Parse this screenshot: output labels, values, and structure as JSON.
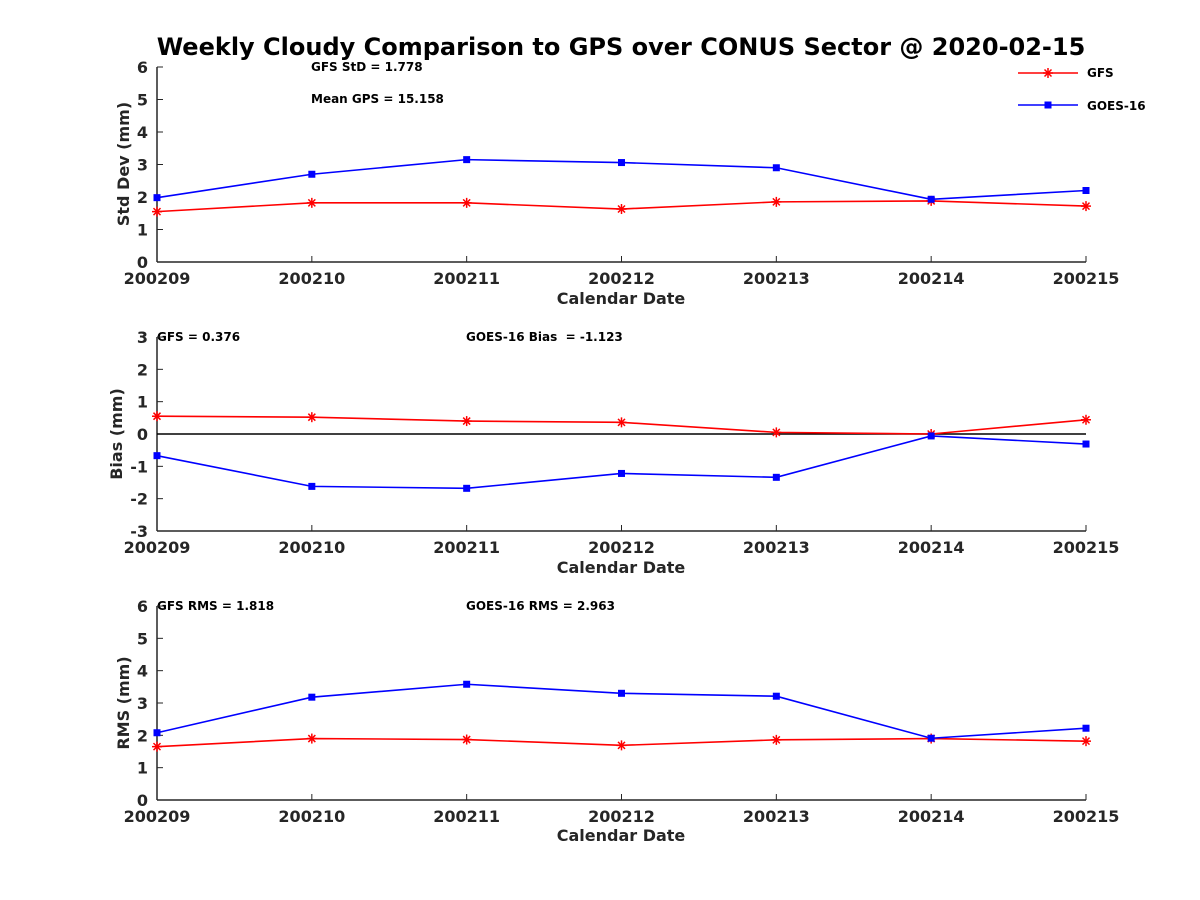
{
  "figure": {
    "title": "Weekly Cloudy Comparison to GPS over CONUS Sector @ 2020-02-15"
  },
  "legend": {
    "placement": "top-right",
    "items": [
      {
        "label": "GFS",
        "color": "#ff0000",
        "marker": "asterisk"
      },
      {
        "label": "GOES-16",
        "color": "#0000ff",
        "marker": "square"
      }
    ]
  },
  "chart_data": [
    {
      "type": "line",
      "xlabel": "Calendar Date",
      "ylabel": "Std Dev (mm)",
      "categories": [
        "200209",
        "200210",
        "200211",
        "200212",
        "200213",
        "200214",
        "200215"
      ],
      "ylim": [
        0,
        6
      ],
      "yticks": [
        "0",
        "1",
        "2",
        "3",
        "4",
        "5",
        "6"
      ],
      "annotations": [
        "GFS StD = 1.778",
        "Mean GPS = 15.158"
      ],
      "series": [
        {
          "name": "GFS",
          "color": "#ff0000",
          "marker": "asterisk",
          "values": [
            1.55,
            1.82,
            1.82,
            1.63,
            1.85,
            1.88,
            1.72
          ]
        },
        {
          "name": "GOES-16",
          "color": "#0000ff",
          "marker": "square",
          "values": [
            1.98,
            2.7,
            3.15,
            3.06,
            2.9,
            1.93,
            2.2
          ]
        }
      ]
    },
    {
      "type": "line",
      "xlabel": "Calendar Date",
      "ylabel": "Bias (mm)",
      "categories": [
        "200209",
        "200210",
        "200211",
        "200212",
        "200213",
        "200214",
        "200215"
      ],
      "ylim": [
        -3,
        3
      ],
      "yticks": [
        "-3",
        "-2",
        "-1",
        "0",
        "1",
        "2",
        "3"
      ],
      "zero_line": true,
      "annotations": [
        "GFS = 0.376",
        "GOES-16 Bias  = -1.123"
      ],
      "series": [
        {
          "name": "GFS",
          "color": "#ff0000",
          "marker": "asterisk",
          "values": [
            0.55,
            0.52,
            0.4,
            0.36,
            0.05,
            0.0,
            0.44
          ]
        },
        {
          "name": "GOES-16",
          "color": "#0000ff",
          "marker": "square",
          "values": [
            -0.67,
            -1.62,
            -1.68,
            -1.22,
            -1.34,
            -0.06,
            -0.31
          ]
        }
      ]
    },
    {
      "type": "line",
      "xlabel": "Calendar Date",
      "ylabel": "RMS (mm)",
      "categories": [
        "200209",
        "200210",
        "200211",
        "200212",
        "200213",
        "200214",
        "200215"
      ],
      "ylim": [
        0,
        6
      ],
      "yticks": [
        "0",
        "1",
        "2",
        "3",
        "4",
        "5",
        "6"
      ],
      "annotations": [
        "GFS RMS = 1.818",
        "GOES-16 RMS = 2.963"
      ],
      "series": [
        {
          "name": "GFS",
          "color": "#ff0000",
          "marker": "asterisk",
          "values": [
            1.65,
            1.9,
            1.87,
            1.69,
            1.86,
            1.9,
            1.82
          ]
        },
        {
          "name": "GOES-16",
          "color": "#0000ff",
          "marker": "square",
          "values": [
            2.08,
            3.18,
            3.58,
            3.3,
            3.21,
            1.91,
            2.22
          ]
        }
      ]
    }
  ]
}
